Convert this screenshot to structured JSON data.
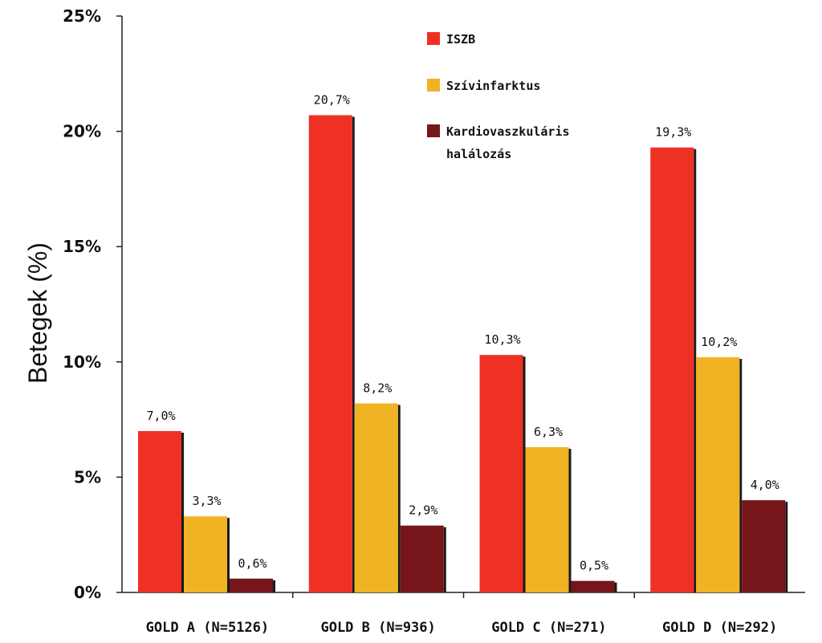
{
  "chart_data": {
    "type": "bar",
    "title": "",
    "xlabel": "",
    "ylabel": "Betegek (%)",
    "ylim": [
      0,
      25
    ],
    "yticks": [
      0,
      5,
      10,
      15,
      20,
      25
    ],
    "ytick_labels": [
      "0%",
      "5%",
      "10%",
      "15%",
      "20%",
      "25%"
    ],
    "categories": [
      "GOLD A (N=5126)",
      "GOLD B (N=936)",
      "GOLD C (N=271)",
      "GOLD D (N=292)"
    ],
    "series": [
      {
        "name": "ISZB",
        "legend_lines": [
          "ISZB"
        ],
        "color": "#ee3124",
        "values": [
          7.0,
          20.7,
          10.3,
          19.3
        ],
        "labels": [
          "7,0%",
          "20,7%",
          "10,3%",
          "19,3%"
        ]
      },
      {
        "name": "Szívinfarktus",
        "legend_lines": [
          "Szívinfarktus"
        ],
        "color": "#f0b323",
        "values": [
          3.3,
          8.2,
          6.3,
          10.2
        ],
        "labels": [
          "3,3%",
          "8,2%",
          "6,3%",
          "10,2%"
        ]
      },
      {
        "name": "Kardiovaszkuláris halálozás",
        "legend_lines": [
          "Kardiovaszkuláris",
          "halálozás"
        ],
        "color": "#76161a",
        "values": [
          0.6,
          2.9,
          0.5,
          4.0
        ],
        "labels": [
          "0,6%",
          "2,9%",
          "0,5%",
          "4,0%"
        ]
      }
    ],
    "grid": false,
    "legend_position": "top-center"
  }
}
